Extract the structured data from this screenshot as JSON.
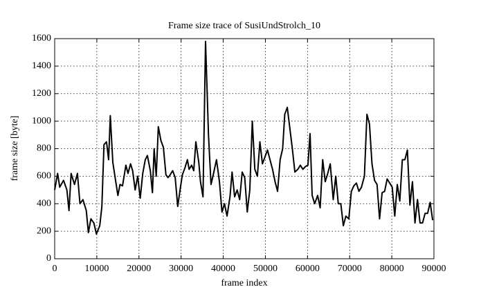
{
  "chart_data": {
    "type": "line",
    "title": "Frame size trace of SusiUndStrolch_10",
    "xlabel": "frame index",
    "ylabel": "frame size [byte]",
    "x": [
      0,
      700,
      1200,
      2100,
      2900,
      3400,
      3900,
      4700,
      5400,
      6000,
      6700,
      7500,
      8000,
      8600,
      9300,
      9900,
      10700,
      11200,
      11700,
      12300,
      12800,
      13200,
      13800,
      14400,
      15000,
      15500,
      16100,
      16900,
      17400,
      18000,
      18500,
      19100,
      19700,
      20300,
      20900,
      21500,
      22000,
      22700,
      23200,
      23600,
      24100,
      24600,
      25200,
      25800,
      26400,
      26900,
      27400,
      28000,
      28600,
      29200,
      29800,
      30300,
      30900,
      31500,
      31900,
      32500,
      33000,
      33500,
      34200,
      34600,
      35200,
      35800,
      36500,
      37100,
      37700,
      38400,
      39100,
      39700,
      40300,
      40900,
      41600,
      42100,
      42700,
      43300,
      43900,
      44500,
      45100,
      45700,
      46300,
      46900,
      47500,
      48100,
      48700,
      49300,
      49900,
      50500,
      51100,
      51700,
      52300,
      52900,
      53500,
      54100,
      54600,
      55200,
      55800,
      56400,
      57000,
      57700,
      58300,
      58900,
      59500,
      60100,
      60600,
      61100,
      61700,
      62400,
      63000,
      63600,
      64200,
      64800,
      65400,
      66100,
      66700,
      67300,
      67900,
      68500,
      69100,
      69800,
      70400,
      71000,
      71600,
      72200,
      72800,
      73500,
      74100,
      74700,
      75300,
      75900,
      76500,
      77100,
      77700,
      78300,
      78900,
      79500,
      80100,
      80700,
      81300,
      81900,
      82500,
      83100,
      83700,
      84300,
      84900,
      85500,
      86100,
      86700,
      87300,
      87900,
      88500,
      89100,
      89700
    ],
    "series": [
      {
        "color": "#000000",
        "values": [
          500,
          620,
          520,
          570,
          500,
          350,
          620,
          540,
          620,
          400,
          430,
          350,
          190,
          290,
          260,
          180,
          240,
          380,
          830,
          850,
          720,
          1040,
          700,
          580,
          460,
          540,
          530,
          680,
          620,
          690,
          640,
          500,
          600,
          440,
          620,
          720,
          750,
          640,
          480,
          800,
          600,
          960,
          860,
          810,
          610,
          590,
          610,
          640,
          590,
          380,
          510,
          610,
          660,
          720,
          650,
          680,
          640,
          850,
          700,
          560,
          450,
          1580,
          900,
          540,
          620,
          720,
          560,
          340,
          400,
          310,
          450,
          630,
          450,
          500,
          430,
          630,
          590,
          340,
          500,
          1000,
          650,
          600,
          850,
          690,
          740,
          790,
          720,
          650,
          560,
          490,
          720,
          800,
          1050,
          1100,
          950,
          800,
          630,
          650,
          680,
          650,
          670,
          680,
          910,
          460,
          400,
          460,
          370,
          720,
          560,
          620,
          690,
          430,
          600,
          400,
          400,
          240,
          310,
          290,
          490,
          530,
          550,
          490,
          520,
          600,
          1050,
          980,
          690,
          570,
          540,
          290,
          480,
          490,
          580,
          550,
          520,
          310,
          540,
          420,
          720,
          720,
          790,
          390,
          560,
          260,
          430,
          260,
          260,
          330,
          330,
          410,
          280
        ]
      }
    ],
    "xlim": [
      0,
      90000
    ],
    "xticks": [
      0,
      10000,
      20000,
      30000,
      40000,
      50000,
      60000,
      70000,
      80000,
      90000
    ],
    "ylim": [
      0,
      1600
    ],
    "yticks": [
      0,
      200,
      400,
      600,
      800,
      1000,
      1200,
      1400,
      1600
    ],
    "grid": true
  }
}
